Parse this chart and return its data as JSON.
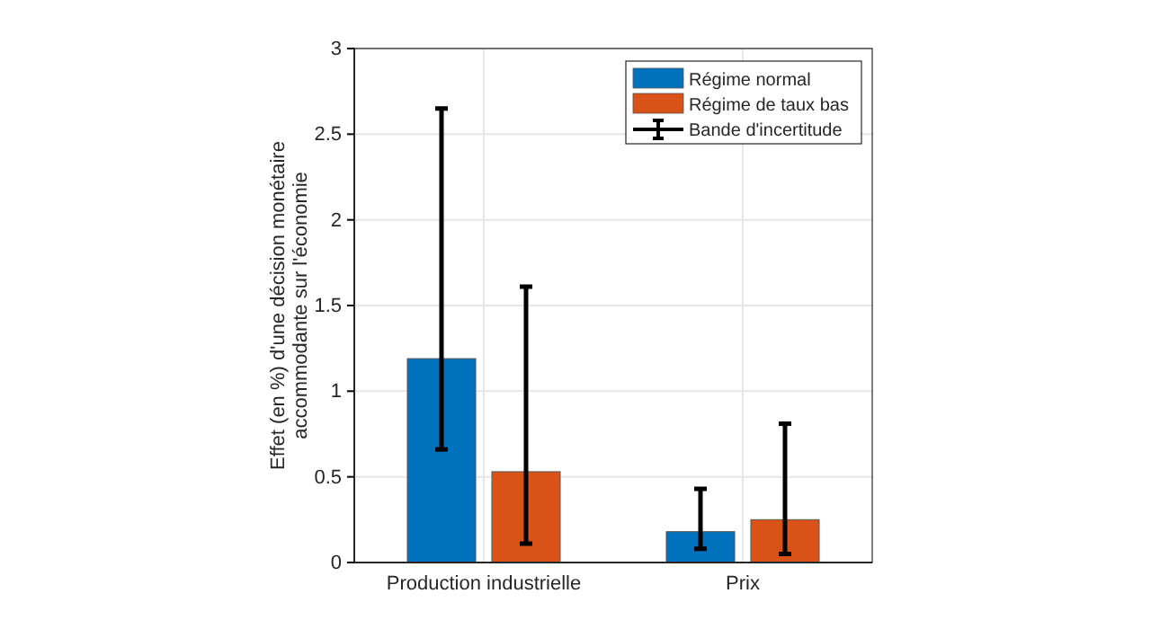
{
  "chart_data": {
    "type": "bar",
    "ylabel": "Effet (en %) d'une décision monétaire accommodante sur l'économie",
    "categories": [
      "Production industrielle",
      "Prix"
    ],
    "series": [
      {
        "name": "Régime normal",
        "color": "#0072bd",
        "values": [
          1.19,
          0.18
        ],
        "errors": [
          [
            0.66,
            2.65
          ],
          [
            0.08,
            0.43
          ]
        ]
      },
      {
        "name": "Régime de taux bas",
        "color": "#d95319",
        "values": [
          0.53,
          0.25
        ],
        "errors": [
          [
            0.11,
            1.61
          ],
          [
            0.05,
            0.81
          ]
        ]
      }
    ],
    "annotations": [
      "Bande d'incertitude"
    ],
    "ylim": [
      0,
      3
    ],
    "yticks": [
      0,
      0.5,
      1,
      1.5,
      2,
      2.5,
      3
    ],
    "grid": true,
    "legend": "top right"
  }
}
